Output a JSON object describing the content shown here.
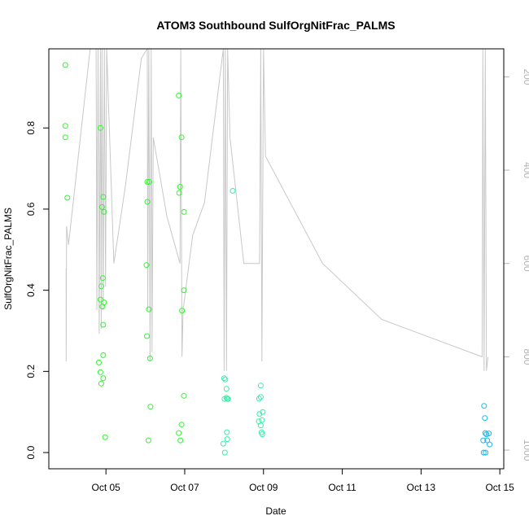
{
  "chart_data": {
    "type": "scatter",
    "title": "ATOM3 Southbound SulfOrgNitFrac_PALMS",
    "xlabel": "Date",
    "ylabel": "SulfOrgNitFrac_PALMS",
    "x_unit": "days (Oct)",
    "xlim": [
      3.55,
      15.1
    ],
    "ylim": [
      -0.04,
      0.995
    ],
    "x_ticks": [
      {
        "value": 5,
        "label": "Oct 05"
      },
      {
        "value": 7,
        "label": "Oct 07"
      },
      {
        "value": 9,
        "label": "Oct 09"
      },
      {
        "value": 11,
        "label": "Oct 11"
      },
      {
        "value": 13,
        "label": "Oct 13"
      },
      {
        "value": 15,
        "label": "Oct 15"
      }
    ],
    "y_ticks": [
      {
        "value": 0.0,
        "label": "0.0"
      },
      {
        "value": 0.2,
        "label": "0.2"
      },
      {
        "value": 0.4,
        "label": "0.4"
      },
      {
        "value": 0.6,
        "label": "0.6"
      },
      {
        "value": 0.8,
        "label": "0.8"
      }
    ],
    "right_axis": {
      "reversed": true,
      "color": "#b3b3b3",
      "lim": [
        1040,
        140
      ],
      "ticks": [
        {
          "value": 200,
          "label": "200"
        },
        {
          "value": 400,
          "label": "400"
        },
        {
          "value": 600,
          "label": "600"
        },
        {
          "value": 800,
          "label": "800"
        },
        {
          "value": 1000,
          "label": "1000"
        }
      ]
    },
    "pressure_trace": {
      "color": "#c8c8c8",
      "points": [
        [
          3.99,
          610
        ],
        [
          3.99,
          810
        ],
        [
          4.0,
          520
        ],
        [
          4.05,
          560
        ],
        [
          4.6,
          140
        ],
        [
          4.75,
          140
        ],
        [
          4.77,
          700
        ],
        [
          4.8,
          140
        ],
        [
          4.83,
          750
        ],
        [
          4.86,
          140
        ],
        [
          4.88,
          740
        ],
        [
          4.9,
          140
        ],
        [
          4.93,
          700
        ],
        [
          4.96,
          140
        ],
        [
          4.99,
          650
        ],
        [
          5.02,
          140
        ],
        [
          5.2,
          600
        ],
        [
          5.5,
          430
        ],
        [
          5.9,
          160
        ],
        [
          6.05,
          140
        ],
        [
          6.06,
          700
        ],
        [
          6.09,
          140
        ],
        [
          6.12,
          810
        ],
        [
          6.15,
          140
        ],
        [
          6.17,
          790
        ],
        [
          6.2,
          330
        ],
        [
          6.55,
          500
        ],
        [
          6.88,
          600
        ],
        [
          6.9,
          140
        ],
        [
          6.93,
          800
        ],
        [
          6.96,
          700
        ],
        [
          7.2,
          540
        ],
        [
          7.5,
          470
        ],
        [
          7.98,
          140
        ],
        [
          8.0,
          830
        ],
        [
          8.03,
          140
        ],
        [
          8.06,
          830
        ],
        [
          8.09,
          140
        ],
        [
          8.15,
          330
        ],
        [
          8.5,
          600
        ],
        [
          8.9,
          600
        ],
        [
          8.93,
          140
        ],
        [
          8.96,
          810
        ],
        [
          9.0,
          140
        ],
        [
          9.05,
          370
        ],
        [
          10.5,
          600
        ],
        [
          12.0,
          720
        ],
        [
          14.55,
          800
        ],
        [
          14.57,
          140
        ],
        [
          14.6,
          830
        ],
        [
          14.63,
          140
        ],
        [
          14.66,
          830
        ],
        [
          14.7,
          800
        ]
      ]
    },
    "series": [
      {
        "color": "#36f236",
        "points": [
          [
            3.97,
            0.955
          ],
          [
            3.97,
            0.805
          ],
          [
            3.97,
            0.777
          ],
          [
            4.02,
            0.628
          ],
          [
            4.86,
            0.8
          ],
          [
            4.9,
            0.605
          ],
          [
            4.93,
            0.63
          ],
          [
            4.95,
            0.593
          ],
          [
            4.88,
            0.41
          ],
          [
            4.92,
            0.43
          ],
          [
            4.86,
            0.377
          ],
          [
            4.91,
            0.36
          ],
          [
            4.95,
            0.37
          ],
          [
            4.93,
            0.315
          ],
          [
            4.82,
            0.222
          ],
          [
            4.93,
            0.24
          ],
          [
            4.86,
            0.198
          ],
          [
            4.93,
            0.183
          ],
          [
            4.88,
            0.17
          ],
          [
            4.98,
            0.038
          ],
          [
            6.05,
            0.667
          ],
          [
            6.1,
            0.667
          ],
          [
            6.05,
            0.618
          ],
          [
            6.03,
            0.462
          ],
          [
            6.09,
            0.353
          ],
          [
            6.04,
            0.287
          ],
          [
            6.12,
            0.232
          ],
          [
            6.13,
            0.113
          ],
          [
            6.08,
            0.03
          ],
          [
            6.85,
            0.88
          ],
          [
            6.92,
            0.777
          ],
          [
            6.88,
            0.655
          ],
          [
            6.86,
            0.64
          ],
          [
            6.98,
            0.593
          ],
          [
            6.98,
            0.4
          ],
          [
            6.93,
            0.35
          ],
          [
            6.98,
            0.14
          ],
          [
            6.92,
            0.069
          ],
          [
            6.85,
            0.048
          ],
          [
            6.89,
            0.03
          ]
        ]
      },
      {
        "color": "#34f0a8",
        "points": [
          [
            8.22,
            0.645
          ],
          [
            8.0,
            0.183
          ],
          [
            8.03,
            0.18
          ],
          [
            8.06,
            0.157
          ],
          [
            8.01,
            0.132
          ],
          [
            8.06,
            0.135
          ],
          [
            8.08,
            0.132
          ],
          [
            8.1,
            0.132
          ],
          [
            8.07,
            0.05
          ],
          [
            8.08,
            0.033
          ],
          [
            7.98,
            0.022
          ],
          [
            8.02,
            0.0
          ],
          [
            8.93,
            0.165
          ],
          [
            8.89,
            0.133
          ],
          [
            8.93,
            0.137
          ],
          [
            8.98,
            0.1
          ],
          [
            8.9,
            0.095
          ],
          [
            8.96,
            0.08
          ],
          [
            8.88,
            0.077
          ],
          [
            8.93,
            0.067
          ],
          [
            8.95,
            0.05
          ],
          [
            8.97,
            0.045
          ]
        ]
      },
      {
        "color": "#1fb7ea",
        "points": [
          [
            14.6,
            0.115
          ],
          [
            14.62,
            0.085
          ],
          [
            14.63,
            0.048
          ],
          [
            14.66,
            0.045
          ],
          [
            14.72,
            0.047
          ],
          [
            14.58,
            0.03
          ],
          [
            14.68,
            0.03
          ],
          [
            14.74,
            0.02
          ],
          [
            14.59,
            0.0
          ],
          [
            14.64,
            0.0
          ]
        ]
      }
    ]
  }
}
